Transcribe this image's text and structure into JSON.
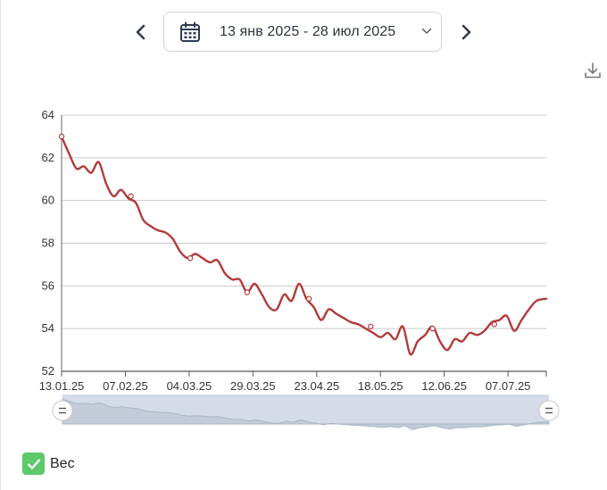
{
  "header": {
    "date_range": "13 янв 2025 - 28 июл 2025",
    "prev_icon": "chevron-left-icon",
    "next_icon": "chevron-right-icon",
    "calendar_icon": "calendar-icon",
    "dropdown_icon": "chevron-down-icon",
    "download_icon": "download-icon"
  },
  "legend": {
    "label": "Вес",
    "checked": true,
    "color": "#5cc96b"
  },
  "colors": {
    "line": "#b33a3a",
    "grid": "#c9c9c9",
    "navigator_fill": "#d4dbe6",
    "navigator_line": "#a9b5c6"
  },
  "chart_data": {
    "type": "line",
    "x_tick_labels": [
      "13.01.25",
      "07.02.25",
      "04.03.25",
      "29.03.25",
      "23.04.25",
      "18.05.25",
      "12.06.25",
      "07.07.25"
    ],
    "ylim": [
      52,
      64
    ],
    "y_ticks": [
      52,
      54,
      56,
      58,
      60,
      62,
      64
    ],
    "xlim": [
      "2025-01-13",
      "2025-07-28"
    ],
    "grid": true,
    "series": [
      {
        "name": "Вес",
        "x": [
          "2025-01-13",
          "2025-01-16",
          "2025-01-19",
          "2025-01-22",
          "2025-01-25",
          "2025-01-28",
          "2025-01-31",
          "2025-02-03",
          "2025-02-06",
          "2025-02-09",
          "2025-02-12",
          "2025-02-15",
          "2025-02-18",
          "2025-02-21",
          "2025-02-24",
          "2025-02-27",
          "2025-03-02",
          "2025-03-05",
          "2025-03-08",
          "2025-03-11",
          "2025-03-14",
          "2025-03-17",
          "2025-03-20",
          "2025-03-23",
          "2025-03-26",
          "2025-03-29",
          "2025-04-01",
          "2025-04-04",
          "2025-04-07",
          "2025-04-10",
          "2025-04-13",
          "2025-04-16",
          "2025-04-19",
          "2025-04-22",
          "2025-04-25",
          "2025-04-28",
          "2025-05-01",
          "2025-05-04",
          "2025-05-07",
          "2025-05-10",
          "2025-05-13",
          "2025-05-16",
          "2025-05-19",
          "2025-05-22",
          "2025-05-25",
          "2025-05-28",
          "2025-05-31",
          "2025-06-03",
          "2025-06-06",
          "2025-06-09",
          "2025-06-12",
          "2025-06-15",
          "2025-06-18",
          "2025-06-21",
          "2025-06-24",
          "2025-06-27",
          "2025-06-30",
          "2025-07-03",
          "2025-07-06",
          "2025-07-09",
          "2025-07-12",
          "2025-07-15",
          "2025-07-18",
          "2025-07-21",
          "2025-07-24",
          "2025-07-28"
        ],
        "values": [
          63.0,
          62.2,
          61.5,
          61.6,
          61.3,
          61.8,
          60.8,
          60.2,
          60.5,
          60.1,
          59.9,
          59.1,
          58.8,
          58.6,
          58.5,
          58.2,
          57.6,
          57.3,
          57.5,
          57.3,
          57.1,
          57.2,
          56.6,
          56.3,
          56.3,
          55.7,
          56.1,
          55.6,
          55.0,
          54.9,
          55.6,
          55.3,
          56.1,
          55.4,
          55.0,
          54.4,
          54.9,
          54.7,
          54.5,
          54.3,
          54.2,
          54.0,
          53.8,
          53.6,
          53.8,
          53.5,
          54.1,
          52.8,
          53.4,
          53.7,
          54.1,
          53.4,
          53.0,
          53.5,
          53.4,
          53.8,
          53.7,
          53.9,
          54.3,
          54.4,
          54.6,
          53.9,
          54.4,
          54.9,
          55.3,
          55.4
        ]
      }
    ],
    "marked_points": [
      {
        "x": "2025-01-13",
        "y": 63.0
      },
      {
        "x": "2025-02-10",
        "y": 60.2
      },
      {
        "x": "2025-03-06",
        "y": 57.3
      },
      {
        "x": "2025-03-29",
        "y": 55.7
      },
      {
        "x": "2025-04-23",
        "y": 55.4
      },
      {
        "x": "2025-05-18",
        "y": 54.1
      },
      {
        "x": "2025-06-12",
        "y": 54.0
      },
      {
        "x": "2025-07-07",
        "y": 54.2
      }
    ]
  }
}
